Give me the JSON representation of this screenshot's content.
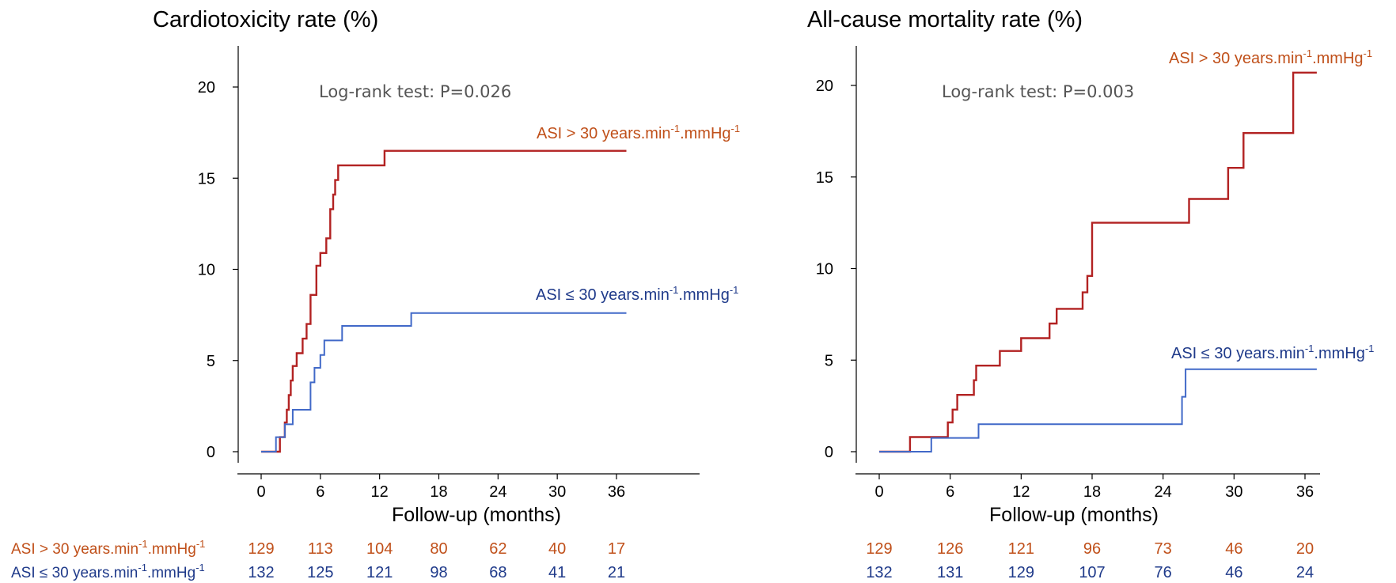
{
  "colors": {
    "high": "#B22222",
    "low": "#4169C8",
    "high_text": "#C0501A",
    "low_text": "#1F3A8A"
  },
  "legend": {
    "high_parts": [
      "ASI > 30 years.min",
      "-1",
      ".mmHg",
      "-1"
    ],
    "low_parts": [
      "ASI ≤ 30 years.min",
      "-1",
      ".mmHg",
      "-1"
    ]
  },
  "chart_data": [
    {
      "type": "line",
      "step": true,
      "title": "Cardiotoxicity rate (%)",
      "xlabel": "Follow-up (months)",
      "ylabel": "",
      "annotation": "Log-rank test: P=0.026",
      "xlim": [
        -2,
        37
      ],
      "ylim": [
        -1,
        23
      ],
      "xticks": [
        0,
        6,
        12,
        18,
        24,
        30,
        36
      ],
      "yticks": [
        0,
        5,
        10,
        15,
        20
      ],
      "series": [
        {
          "key": "high",
          "x": [
            0,
            1.9,
            1.9,
            2.4,
            2.6,
            2.8,
            3.0,
            3.2,
            3.6,
            4.2,
            4.6,
            5.0,
            5.6,
            6.0,
            6.6,
            7.0,
            7.3,
            7.5,
            7.8,
            12.5,
            37
          ],
          "y": [
            0,
            0,
            0.8,
            1.6,
            2.3,
            3.1,
            3.9,
            4.7,
            5.4,
            6.2,
            7.0,
            8.6,
            10.2,
            10.9,
            11.7,
            13.3,
            14.1,
            14.9,
            15.7,
            16.5,
            16.5
          ]
        },
        {
          "key": "low",
          "x": [
            0,
            1.5,
            1.5,
            2.4,
            3.2,
            5.0,
            5.4,
            6.0,
            6.4,
            8.2,
            15.2,
            37
          ],
          "y": [
            0,
            0,
            0.8,
            1.5,
            2.3,
            3.8,
            4.6,
            5.3,
            6.1,
            6.9,
            7.6,
            7.6
          ]
        }
      ],
      "risk_table": {
        "times": [
          0,
          6,
          12,
          18,
          24,
          30,
          36
        ],
        "high_label_parts": [
          "ASI > 30 years.min",
          "-1",
          ".mmHg",
          "-1"
        ],
        "low_label_parts": [
          "ASI ≤ 30 years.min",
          "-1",
          ".mmHg",
          "-1"
        ],
        "high": [
          "129",
          "113",
          "104",
          "80",
          "62",
          "40",
          "17"
        ],
        "low": [
          "132",
          "125",
          "121",
          "98",
          "68",
          "41",
          "21"
        ]
      }
    },
    {
      "type": "line",
      "step": true,
      "title": "All-cause mortality rate (%)",
      "xlabel": "Follow-up (months)",
      "ylabel": "",
      "annotation": "Log-rank test: P=0.003",
      "xlim": [
        -2,
        37
      ],
      "ylim": [
        -1,
        23
      ],
      "xticks": [
        0,
        6,
        12,
        18,
        24,
        30,
        36
      ],
      "yticks": [
        0,
        5,
        10,
        15,
        20
      ],
      "series": [
        {
          "key": "high",
          "x": [
            0,
            2.6,
            2.6,
            5.8,
            6.2,
            6.6,
            8.0,
            8.2,
            10.2,
            12.0,
            14.4,
            15.0,
            17.2,
            17.6,
            18.0,
            26.2,
            29.5,
            30.8,
            35.0,
            37
          ],
          "y": [
            0,
            0,
            0.8,
            1.6,
            2.3,
            3.1,
            3.9,
            4.7,
            5.5,
            6.2,
            7.0,
            7.8,
            8.7,
            9.6,
            12.5,
            13.8,
            15.5,
            17.4,
            20.7,
            20.7
          ]
        },
        {
          "key": "low",
          "x": [
            0,
            4.4,
            4.4,
            8.4,
            25.6,
            25.9,
            37
          ],
          "y": [
            0,
            0,
            0.75,
            1.5,
            3.0,
            4.5,
            4.5
          ]
        }
      ],
      "risk_table": {
        "times": [
          0,
          6,
          12,
          18,
          24,
          30,
          36
        ],
        "high": [
          "129",
          "126",
          "121",
          "96",
          "73",
          "46",
          "20"
        ],
        "low": [
          "132",
          "131",
          "129",
          "107",
          "76",
          "46",
          "24"
        ]
      }
    }
  ]
}
